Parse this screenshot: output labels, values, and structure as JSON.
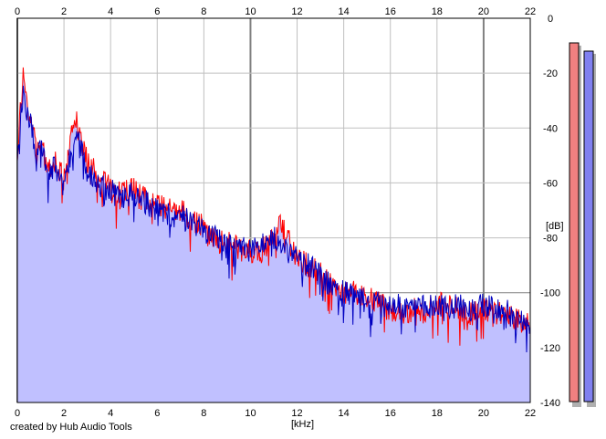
{
  "app": {
    "credit": "created by Hub Audio Tools"
  },
  "colors": {
    "background": "#ffffff",
    "plot_background": "#ffffff",
    "grid": "#c0c0c0",
    "grid_major": "#808080",
    "fill": "#c0c0ff",
    "left_channel": "#ff0000",
    "right_channel": "#0000c0",
    "meter_left": "#f08080",
    "meter_right": "#8080f0",
    "meter_shadow": "#b0b0b0"
  },
  "chart_data": {
    "type": "line",
    "title": "",
    "xlabel": "[kHz]",
    "ylabel": "[dB]",
    "xlim": [
      0,
      22
    ],
    "ylim": [
      -140,
      0
    ],
    "x_ticks": [
      0,
      2,
      4,
      6,
      8,
      10,
      12,
      14,
      16,
      18,
      20,
      22
    ],
    "y_ticks": [
      0,
      -20,
      -40,
      -60,
      -80,
      -100,
      -120,
      -140
    ],
    "grid": true,
    "legend": "none",
    "x_ticks_top": true,
    "filled_area": true,
    "series": [
      {
        "channel": "left",
        "color": "#ff0000",
        "x": [
          0,
          0.1,
          0.25,
          0.4,
          0.6,
          0.8,
          1.0,
          1.3,
          1.6,
          2.0,
          2.2,
          2.5,
          2.8,
          3.0,
          3.5,
          4.0,
          4.5,
          5.0,
          5.5,
          6.0,
          6.5,
          7.0,
          7.5,
          8.0,
          8.5,
          9.0,
          9.5,
          10.0,
          10.5,
          11.0,
          11.3,
          11.6,
          12.0,
          12.5,
          13.0,
          13.5,
          14.0,
          14.5,
          15.0,
          15.5,
          16.0,
          16.5,
          17.0,
          17.5,
          18.0,
          18.5,
          19.0,
          19.5,
          20.0,
          20.5,
          21.0,
          21.5,
          22.0
        ],
        "y": [
          -50,
          -35,
          -22,
          -30,
          -38,
          -48,
          -45,
          -55,
          -52,
          -58,
          -48,
          -37,
          -45,
          -52,
          -58,
          -62,
          -64,
          -62,
          -66,
          -68,
          -70,
          -70,
          -73,
          -76,
          -80,
          -82,
          -84,
          -85,
          -84,
          -80,
          -75,
          -80,
          -88,
          -90,
          -92,
          -96,
          -100,
          -100,
          -102,
          -104,
          -106,
          -108,
          -106,
          -107,
          -104,
          -105,
          -106,
          -108,
          -106,
          -107,
          -108,
          -110,
          -112
        ]
      },
      {
        "channel": "right",
        "color": "#0000c0",
        "x": [
          0,
          0.1,
          0.25,
          0.4,
          0.6,
          0.8,
          1.0,
          1.3,
          1.6,
          2.0,
          2.2,
          2.5,
          2.8,
          3.0,
          3.5,
          4.0,
          4.5,
          5.0,
          5.5,
          6.0,
          6.5,
          7.0,
          7.5,
          8.0,
          8.5,
          9.0,
          9.5,
          10.0,
          10.5,
          11.0,
          11.3,
          11.6,
          12.0,
          12.5,
          13.0,
          13.5,
          14.0,
          14.5,
          15.0,
          15.5,
          16.0,
          16.5,
          17.0,
          17.5,
          18.0,
          18.5,
          19.0,
          19.5,
          20.0,
          20.5,
          21.0,
          21.5,
          22.0
        ],
        "y": [
          -52,
          -38,
          -25,
          -33,
          -40,
          -50,
          -48,
          -56,
          -54,
          -60,
          -52,
          -42,
          -50,
          -56,
          -60,
          -63,
          -65,
          -64,
          -67,
          -70,
          -72,
          -72,
          -74,
          -77,
          -80,
          -82,
          -83,
          -84,
          -82,
          -80,
          -80,
          -84,
          -88,
          -90,
          -94,
          -98,
          -100,
          -101,
          -103,
          -104,
          -104,
          -105,
          -105,
          -105,
          -104,
          -105,
          -105,
          -107,
          -104,
          -105,
          -107,
          -109,
          -112
        ]
      }
    ],
    "level_meters": [
      {
        "channel": "left",
        "level_db": -9
      },
      {
        "channel": "right",
        "level_db": -12
      }
    ]
  }
}
